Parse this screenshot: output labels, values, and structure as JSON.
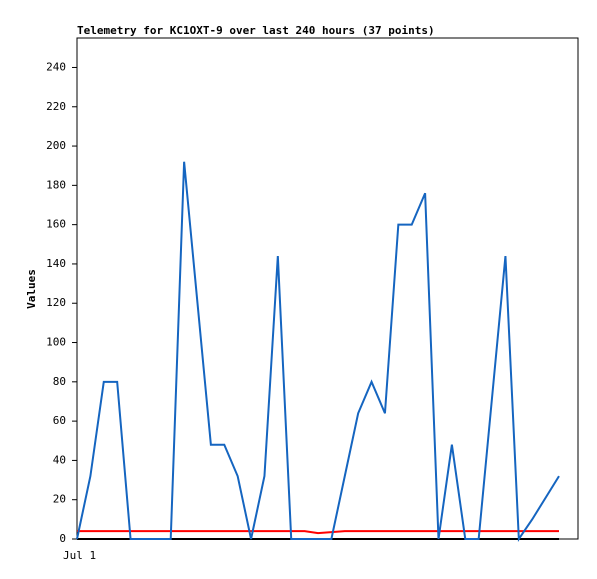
{
  "chart_data": {
    "type": "line",
    "title": "Telemetry for KC1OXT-9 over last 240 hours (37 points)",
    "y_label": "Values",
    "categories": [
      "Jul 1",
      null,
      null,
      null,
      null,
      null,
      null,
      null,
      null,
      null,
      null,
      null,
      null,
      null,
      null,
      null,
      null,
      null,
      null,
      null,
      null,
      null,
      null,
      null,
      null,
      null,
      null,
      null,
      null,
      null,
      null,
      null,
      null,
      null,
      null,
      null,
      null
    ],
    "series": [
      {
        "color": "#000000",
        "values": [
          0,
          0,
          0,
          0,
          0,
          0,
          0,
          0,
          0,
          0,
          0,
          0,
          0,
          0,
          0,
          0,
          0,
          0,
          0,
          0,
          0,
          0,
          0,
          0,
          0,
          0,
          0,
          0,
          0,
          0,
          0,
          0,
          0,
          0,
          0,
          0,
          0
        ]
      },
      {
        "color": "#ff0000",
        "values": [
          4,
          4,
          4,
          4,
          4,
          4,
          4,
          4,
          4,
          4,
          4,
          4,
          4,
          4,
          4,
          4,
          4,
          4,
          3,
          3.5,
          4,
          4,
          4,
          4,
          4,
          4,
          4,
          4,
          4,
          4,
          4,
          4,
          4,
          4,
          4,
          4,
          4
        ]
      },
      {
        "color": "#1565c0",
        "values": [
          0,
          32,
          80,
          80,
          0,
          0,
          0,
          0,
          192,
          120,
          48,
          48,
          32,
          0,
          32,
          144,
          0,
          0,
          0,
          0,
          32,
          64,
          80,
          64,
          160,
          160,
          176,
          0,
          48,
          0,
          0,
          72,
          144,
          0,
          10,
          21,
          32
        ]
      }
    ],
    "ylim": [
      0,
      255
    ],
    "yticks": [
      0,
      20,
      40,
      60,
      80,
      100,
      120,
      140,
      160,
      180,
      200,
      220,
      240
    ]
  }
}
